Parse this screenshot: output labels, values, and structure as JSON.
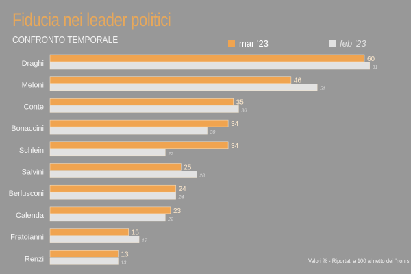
{
  "header": {
    "title": "Fiducia nei leader politici",
    "subtitle": "CONFRONTO TEMPORALE"
  },
  "footnote": "Valori % - Riportati a 100 al netto dei \"non s",
  "colors": {
    "mar": "#f0a450",
    "feb": "#e2e2e2",
    "background": "#989898"
  },
  "chart_data": {
    "type": "bar",
    "orientation": "horizontal",
    "title": "Fiducia nei leader politici",
    "subtitle": "CONFRONTO TEMPORALE",
    "categories": [
      "Draghi",
      "Meloni",
      "Conte",
      "Bonaccini",
      "Schlein",
      "Salvini",
      "Berlusconi",
      "Calenda",
      "Fratoianni",
      "Renzi"
    ],
    "series": [
      {
        "name": "mar '23",
        "values": [
          60,
          46,
          35,
          34,
          34,
          25,
          24,
          23,
          15,
          13
        ]
      },
      {
        "name": "feb '23",
        "values": [
          61,
          51,
          36,
          30,
          22,
          28,
          24,
          22,
          17,
          13
        ]
      }
    ],
    "legend_position": "top-right",
    "xlim": [
      0,
      62
    ],
    "grid": false
  }
}
